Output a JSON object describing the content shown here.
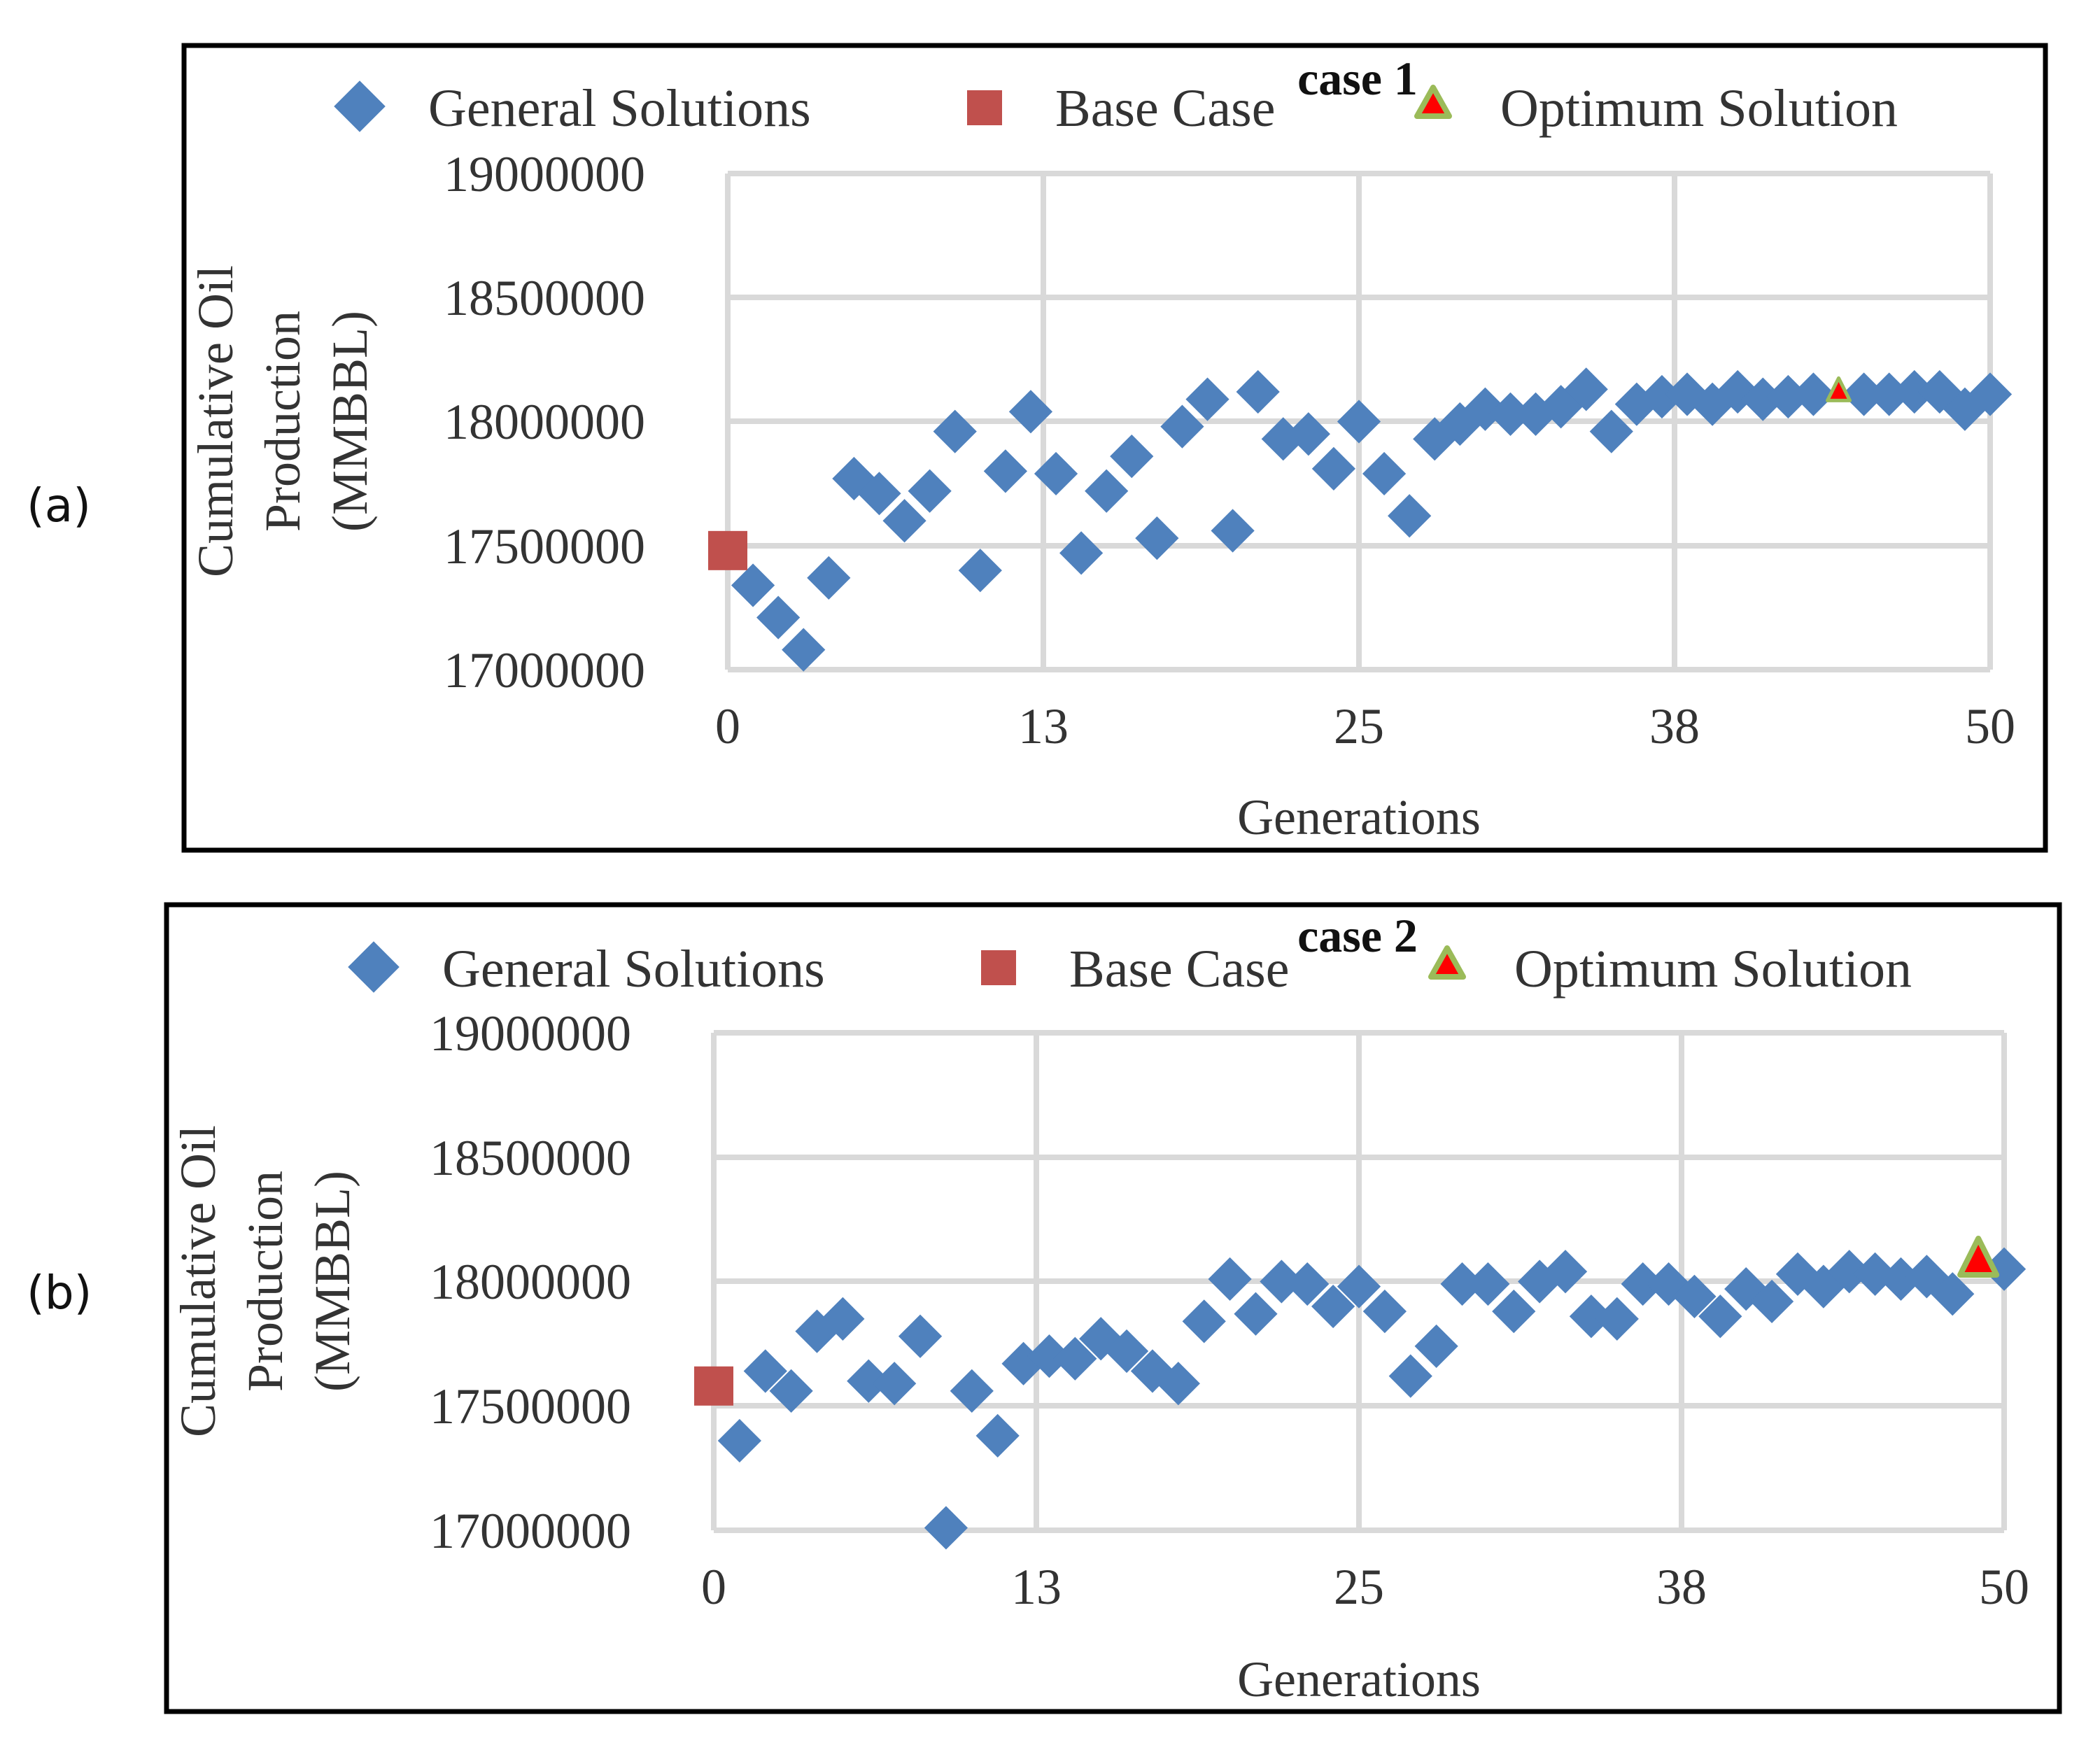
{
  "figure": {
    "panel_labels": [
      "(a)",
      "(b)"
    ]
  },
  "colors": {
    "general": "#4f81bd",
    "base": "#c0504d",
    "optimum_fill": "#ff0000",
    "optimum_edge": "#9bbb59",
    "grid": "#d9d9d9"
  },
  "chart_data": [
    {
      "type": "scatter",
      "title": "case 1",
      "xlabel": "Generations",
      "ylabel_lines": [
        "Cumulative Oil",
        "Production",
        "(MMBBL)"
      ],
      "xlim": [
        0,
        50
      ],
      "ylim": [
        17000000,
        19000000
      ],
      "x_ticks": [
        "0",
        "13",
        "25",
        "38",
        "50"
      ],
      "y_ticks": [
        "19000000",
        "18500000",
        "18000000",
        "17500000",
        "17000000"
      ],
      "grid": true,
      "legend_position": "top",
      "legend": [
        "General Solutions",
        "Base Case",
        "Optimum Solution"
      ],
      "series": [
        {
          "name": "General Solutions",
          "marker": "diamond",
          "x": [
            1,
            2,
            3,
            4,
            5,
            6,
            7,
            8,
            9,
            10,
            11,
            12,
            13,
            14,
            15,
            16,
            17,
            18,
            19,
            20,
            21,
            22,
            23,
            24,
            25,
            26,
            27,
            28,
            29,
            30,
            31,
            32,
            33,
            34,
            35,
            36,
            37,
            38,
            39,
            40,
            41,
            42,
            43,
            45,
            46,
            47,
            48,
            49,
            50
          ],
          "y": [
            17340000,
            17210000,
            17080000,
            17370000,
            17770000,
            17710000,
            17600000,
            17720000,
            17960000,
            17400000,
            17800000,
            18040000,
            17790000,
            17470000,
            17720000,
            17860000,
            17530000,
            17980000,
            18090000,
            17560000,
            18120000,
            17930000,
            17950000,
            17810000,
            18000000,
            17790000,
            17620000,
            17930000,
            17990000,
            18050000,
            18030000,
            18030000,
            18060000,
            18130000,
            17960000,
            18070000,
            18100000,
            18110000,
            18070000,
            18120000,
            18090000,
            18100000,
            18110000,
            18110000,
            18110000,
            18120000,
            18120000,
            18050000,
            18110000
          ]
        },
        {
          "name": "Base Case",
          "marker": "square",
          "x": [
            0
          ],
          "y": [
            17480000
          ]
        },
        {
          "name": "Optimum Solution",
          "marker": "triangle",
          "x": [
            44
          ],
          "y": [
            18130000
          ]
        }
      ]
    },
    {
      "type": "scatter",
      "title": "case 2",
      "xlabel": "Generations",
      "ylabel_lines": [
        "Cumulative Oil",
        "Production",
        "(MMBBL)"
      ],
      "xlim": [
        0,
        50
      ],
      "ylim": [
        17000000,
        19000000
      ],
      "x_ticks": [
        "0",
        "13",
        "25",
        "38",
        "50"
      ],
      "y_ticks": [
        "19000000",
        "18500000",
        "18000000",
        "17500000",
        "17000000"
      ],
      "grid": true,
      "legend_position": "top",
      "legend": [
        "General Solutions",
        "Base Case",
        "Optimum Solution"
      ],
      "series": [
        {
          "name": "General Solutions",
          "marker": "diamond",
          "x": [
            1,
            2,
            3,
            4,
            5,
            6,
            7,
            8,
            9,
            10,
            11,
            12,
            13,
            14,
            15,
            16,
            17,
            18,
            19,
            20,
            21,
            22,
            23,
            24,
            25,
            26,
            27,
            28,
            29,
            30,
            31,
            32,
            33,
            34,
            35,
            36,
            37,
            38,
            39,
            40,
            41,
            42,
            43,
            44,
            45,
            46,
            47,
            48,
            50
          ],
          "y": [
            17360000,
            17640000,
            17560000,
            17800000,
            17850000,
            17600000,
            17590000,
            17780000,
            17010000,
            17560000,
            17380000,
            17670000,
            17700000,
            17690000,
            17770000,
            17720000,
            17640000,
            17590000,
            17840000,
            18010000,
            17870000,
            18000000,
            17990000,
            17900000,
            17980000,
            17880000,
            17620000,
            17740000,
            17990000,
            17990000,
            17880000,
            18000000,
            18040000,
            17860000,
            17850000,
            17990000,
            17990000,
            17940000,
            17860000,
            17970000,
            17920000,
            18030000,
            17980000,
            18040000,
            18030000,
            18010000,
            18020000,
            17950000,
            18050000
          ]
        },
        {
          "name": "Base Case",
          "marker": "square",
          "x": [
            0
          ],
          "y": [
            17580000
          ]
        },
        {
          "name": "Optimum Solution",
          "marker": "triangle",
          "x": [
            49
          ],
          "y": [
            18100000
          ]
        }
      ]
    }
  ]
}
